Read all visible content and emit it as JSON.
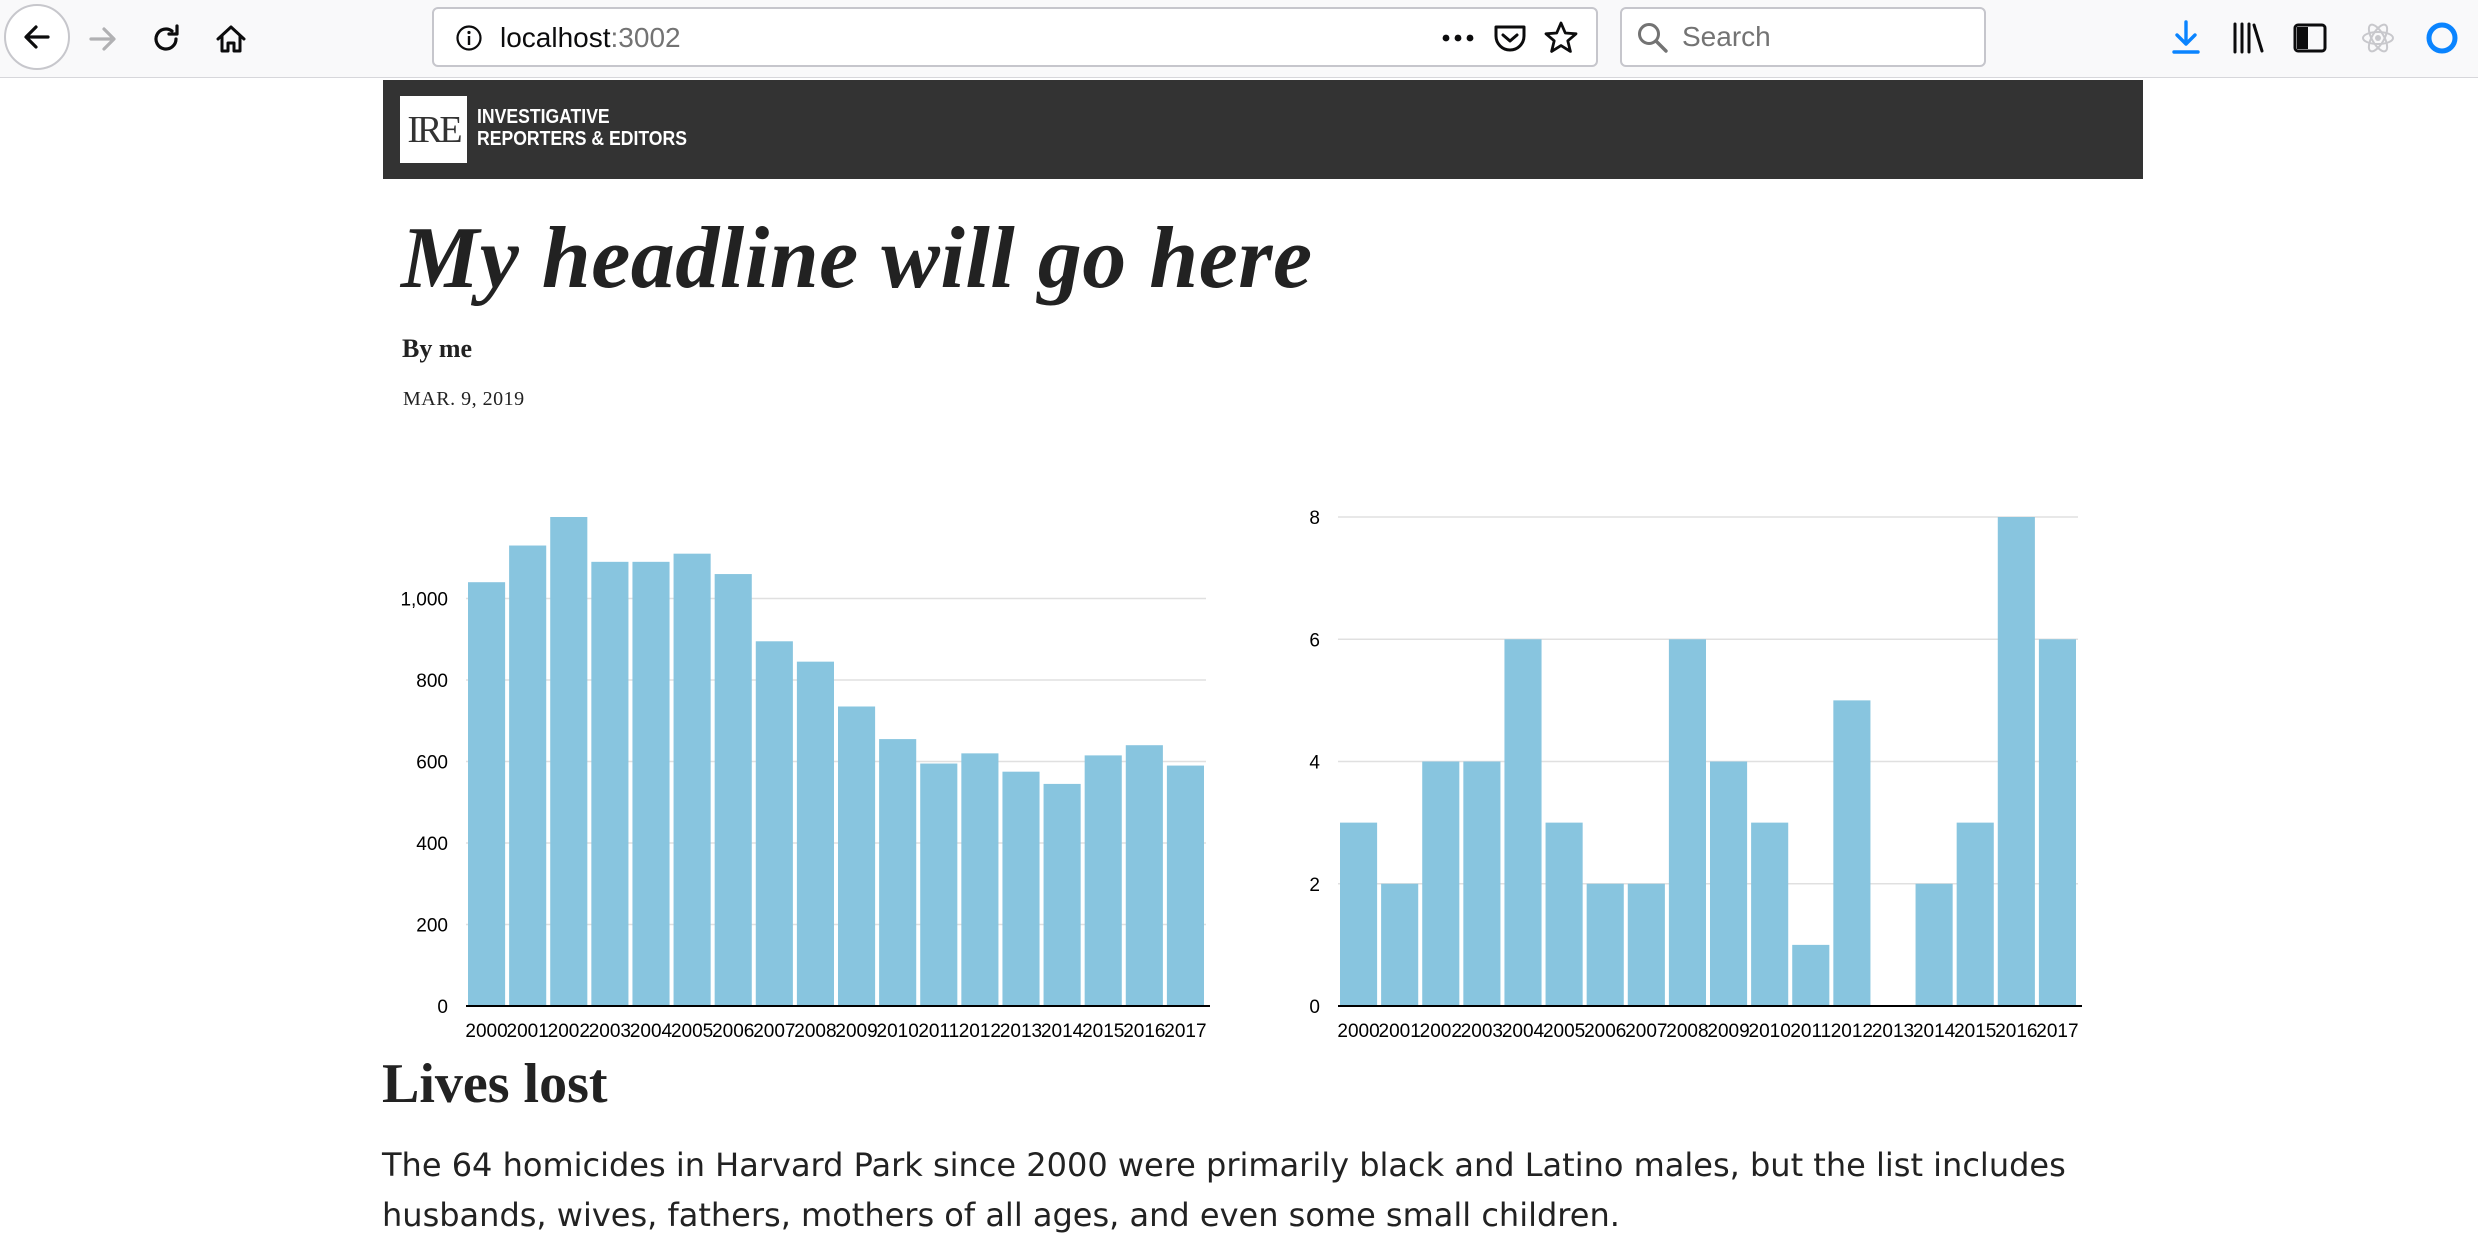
{
  "browser": {
    "url_host": "localhost",
    "url_port": ":3002",
    "search_placeholder": "Search"
  },
  "site": {
    "logo_letters": "IRE",
    "logo_line1": "INVESTIGATIVE",
    "logo_line2": "REPORTERS & EDITORS"
  },
  "article": {
    "headline": "My headline will go here",
    "byline": "By me",
    "date": "MAR. 9, 2019",
    "section_title": "Lives lost",
    "body": "The 64 homicides in Harvard Park since 2000 were primarily black and Latino males, but the list includes husbands, wives, fathers, mothers of all ages, and even some small children."
  },
  "colors": {
    "bar": "#88c5df",
    "header_bg": "#333333",
    "grid": "#e0e0e0"
  },
  "chart_data": [
    {
      "type": "bar",
      "categories": [
        "2000",
        "2001",
        "2002",
        "2003",
        "2004",
        "2005",
        "2006",
        "2007",
        "2008",
        "2009",
        "2010",
        "2011",
        "2012",
        "2013",
        "2014",
        "2015",
        "2016",
        "2017"
      ],
      "values": [
        1040,
        1130,
        1200,
        1090,
        1090,
        1110,
        1060,
        895,
        845,
        735,
        655,
        595,
        620,
        575,
        545,
        615,
        640,
        590
      ],
      "ylim": [
        0,
        1200
      ],
      "yticks": [
        0,
        200,
        400,
        600,
        800,
        1000
      ],
      "ytick_labels": [
        "0",
        "200",
        "400",
        "600",
        "800",
        "1,000"
      ],
      "grid": true
    },
    {
      "type": "bar",
      "categories": [
        "2000",
        "2001",
        "2002",
        "2003",
        "2004",
        "2005",
        "2006",
        "2007",
        "2008",
        "2009",
        "2010",
        "2011",
        "2012",
        "2013",
        "2014",
        "2015",
        "2016",
        "2017"
      ],
      "values": [
        3,
        2,
        4,
        4,
        6,
        3,
        2,
        2,
        6,
        4,
        3,
        1,
        5,
        0,
        2,
        3,
        8,
        6
      ],
      "ylim": [
        0,
        8
      ],
      "yticks": [
        0,
        2,
        4,
        6,
        8
      ],
      "ytick_labels": [
        "0",
        "2",
        "4",
        "6",
        "8"
      ],
      "grid": true
    }
  ]
}
